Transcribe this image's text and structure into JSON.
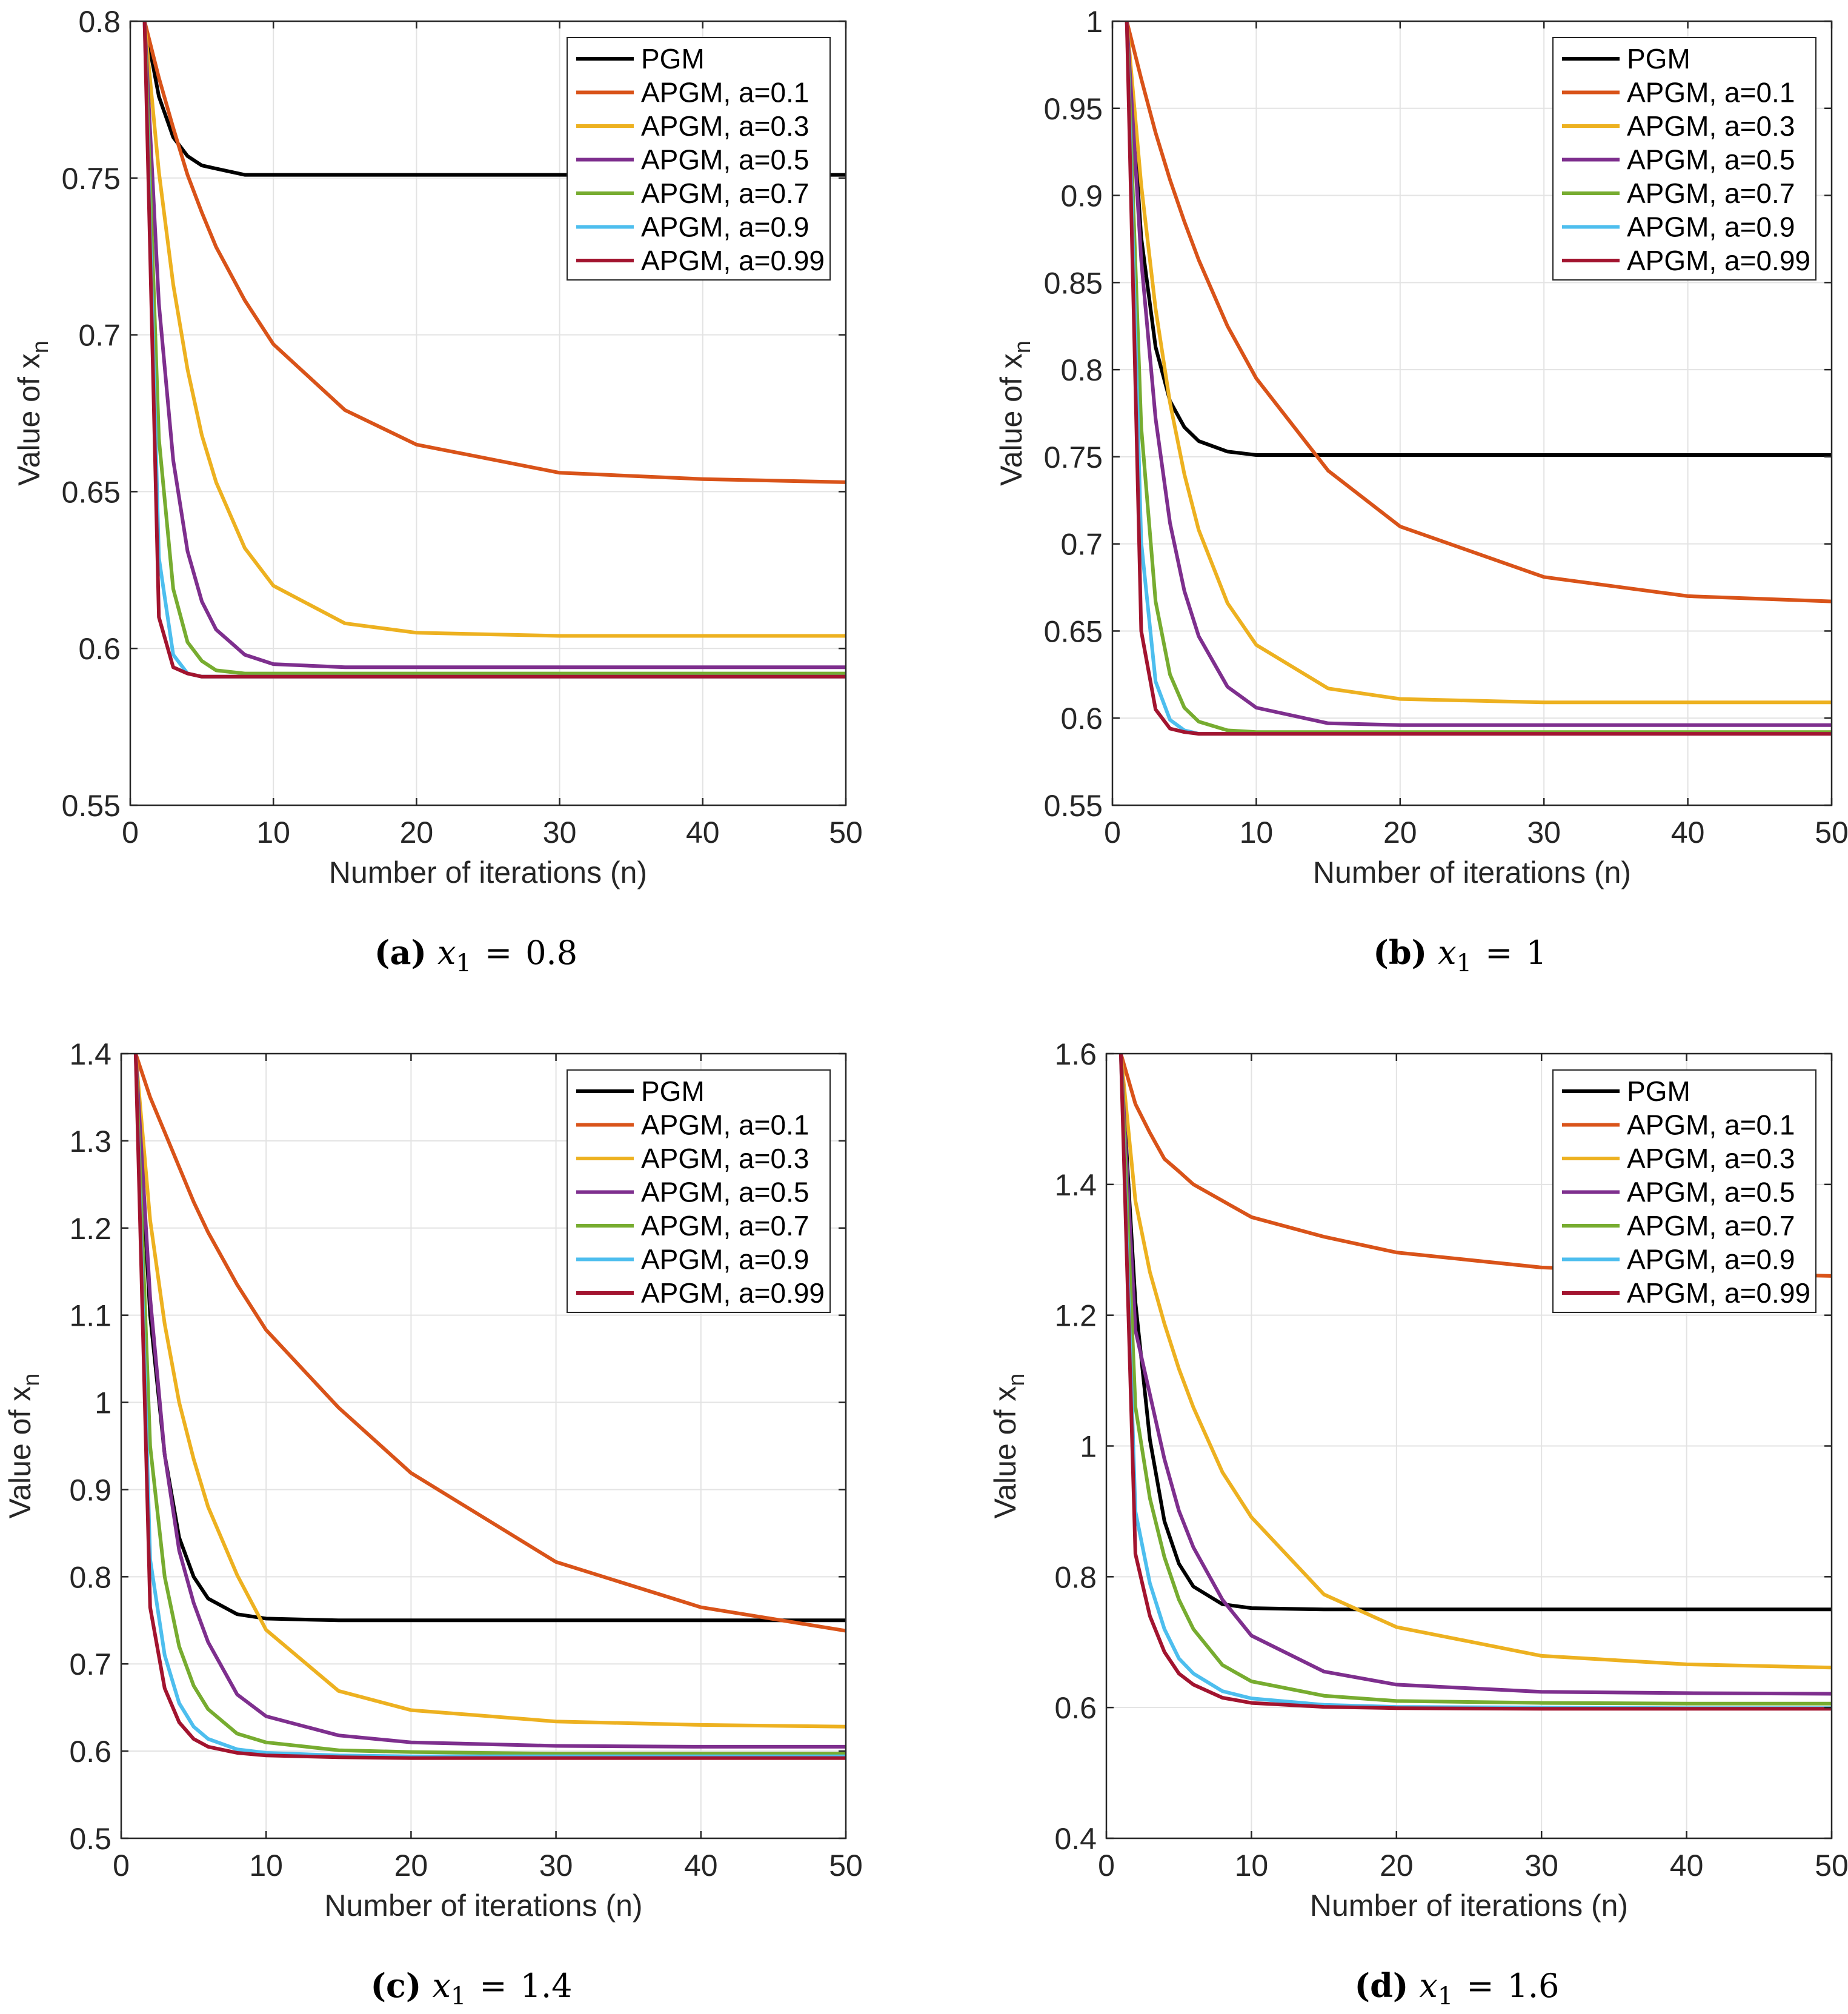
{
  "chart_data": [
    {
      "type": "line",
      "caption": {
        "label": "(a)",
        "var": "x",
        "sub": "1",
        "eq": "=",
        "value": "0.8"
      },
      "xlabel": "Number of iterations (n)",
      "ylabel": "Value of x",
      "ylabel_sub": "n",
      "xlim": [
        0,
        50
      ],
      "ylim": [
        0.55,
        0.8
      ],
      "xticks": [
        "0",
        "10",
        "20",
        "30",
        "40",
        "50"
      ],
      "xtick_values": [
        0,
        10,
        20,
        30,
        40,
        50
      ],
      "yticks": [
        "0.55",
        "0.6",
        "0.65",
        "0.7",
        "0.75",
        "0.8"
      ],
      "ytick_values": [
        0.55,
        0.6,
        0.65,
        0.7,
        0.75,
        0.8
      ],
      "grid": true,
      "legend_position": "top-right",
      "x": [
        1,
        2,
        3,
        4,
        5,
        6,
        8,
        10,
        15,
        20,
        30,
        40,
        50
      ],
      "series": [
        {
          "name": "PGM",
          "color": "#000000",
          "values": [
            0.8,
            0.776,
            0.763,
            0.757,
            0.754,
            0.753,
            0.751,
            0.751,
            0.751,
            0.751,
            0.751,
            0.751,
            0.751
          ]
        },
        {
          "name": "APGM, a=0.1",
          "color": "#D95319",
          "values": [
            0.8,
            0.782,
            0.766,
            0.751,
            0.739,
            0.728,
            0.711,
            0.697,
            0.676,
            0.665,
            0.656,
            0.654,
            0.653
          ]
        },
        {
          "name": "APGM, a=0.3",
          "color": "#EDB120",
          "values": [
            0.8,
            0.752,
            0.716,
            0.689,
            0.668,
            0.653,
            0.632,
            0.62,
            0.608,
            0.605,
            0.604,
            0.604,
            0.604
          ]
        },
        {
          "name": "APGM, a=0.5",
          "color": "#7E2F8E",
          "values": [
            0.8,
            0.71,
            0.66,
            0.631,
            0.615,
            0.606,
            0.598,
            0.595,
            0.594,
            0.594,
            0.594,
            0.594,
            0.594
          ]
        },
        {
          "name": "APGM, a=0.7",
          "color": "#77AC30",
          "values": [
            0.8,
            0.667,
            0.619,
            0.602,
            0.596,
            0.593,
            0.592,
            0.592,
            0.592,
            0.592,
            0.592,
            0.592,
            0.592
          ]
        },
        {
          "name": "APGM, a=0.9",
          "color": "#4DBEEE",
          "values": [
            0.8,
            0.629,
            0.598,
            0.592,
            0.591,
            0.591,
            0.591,
            0.591,
            0.591,
            0.591,
            0.591,
            0.591,
            0.591
          ]
        },
        {
          "name": "APGM, a=0.99",
          "color": "#A2142F",
          "values": [
            0.8,
            0.61,
            0.594,
            0.592,
            0.591,
            0.591,
            0.591,
            0.591,
            0.591,
            0.591,
            0.591,
            0.591,
            0.591
          ]
        }
      ]
    },
    {
      "type": "line",
      "caption": {
        "label": "(b)",
        "var": "x",
        "sub": "1",
        "eq": "=",
        "value": "1"
      },
      "xlabel": "Number of iterations (n)",
      "ylabel": "Value of x",
      "ylabel_sub": "n",
      "xlim": [
        0,
        50
      ],
      "ylim": [
        0.55,
        1
      ],
      "xticks": [
        "0",
        "10",
        "20",
        "30",
        "40",
        "50"
      ],
      "xtick_values": [
        0,
        10,
        20,
        30,
        40,
        50
      ],
      "yticks": [
        "0.55",
        "0.6",
        "0.65",
        "0.7",
        "0.75",
        "0.8",
        "0.85",
        "0.9",
        "0.95",
        "1"
      ],
      "ytick_values": [
        0.55,
        0.6,
        0.65,
        0.7,
        0.75,
        0.8,
        0.85,
        0.9,
        0.95,
        1
      ],
      "grid": true,
      "legend_position": "top-right",
      "x": [
        1,
        2,
        3,
        4,
        5,
        6,
        8,
        10,
        15,
        20,
        30,
        40,
        50
      ],
      "series": [
        {
          "name": "PGM",
          "color": "#000000",
          "values": [
            1,
            0.876,
            0.813,
            0.782,
            0.767,
            0.759,
            0.753,
            0.751,
            0.751,
            0.751,
            0.751,
            0.751,
            0.751
          ]
        },
        {
          "name": "APGM, a=0.1",
          "color": "#D95319",
          "values": [
            1,
            0.967,
            0.936,
            0.909,
            0.885,
            0.863,
            0.825,
            0.795,
            0.742,
            0.71,
            0.681,
            0.67,
            0.667
          ]
        },
        {
          "name": "APGM, a=0.3",
          "color": "#EDB120",
          "values": [
            1,
            0.906,
            0.835,
            0.781,
            0.74,
            0.708,
            0.666,
            0.642,
            0.617,
            0.611,
            0.609,
            0.609,
            0.609
          ]
        },
        {
          "name": "APGM, a=0.5",
          "color": "#7E2F8E",
          "values": [
            1,
            0.863,
            0.772,
            0.712,
            0.673,
            0.647,
            0.618,
            0.606,
            0.597,
            0.596,
            0.596,
            0.596,
            0.596
          ]
        },
        {
          "name": "APGM, a=0.7",
          "color": "#77AC30",
          "values": [
            1,
            0.767,
            0.667,
            0.625,
            0.606,
            0.598,
            0.593,
            0.592,
            0.592,
            0.592,
            0.592,
            0.592,
            0.592
          ]
        },
        {
          "name": "APGM, a=0.9",
          "color": "#4DBEEE",
          "values": [
            1,
            0.701,
            0.621,
            0.599,
            0.593,
            0.591,
            0.591,
            0.591,
            0.591,
            0.591,
            0.591,
            0.591,
            0.591
          ]
        },
        {
          "name": "APGM, a=0.99",
          "color": "#A2142F",
          "values": [
            1,
            0.65,
            0.605,
            0.594,
            0.592,
            0.591,
            0.591,
            0.591,
            0.591,
            0.591,
            0.591,
            0.591,
            0.591
          ]
        }
      ]
    },
    {
      "type": "line",
      "caption": {
        "label": "(c)",
        "var": "x",
        "sub": "1",
        "eq": "=",
        "value": "1.4"
      },
      "xlabel": "Number of iterations (n)",
      "ylabel": "Value of x",
      "ylabel_sub": "n",
      "xlim": [
        0,
        50
      ],
      "ylim": [
        0.5,
        1.4
      ],
      "xticks": [
        "0",
        "10",
        "20",
        "30",
        "40",
        "50"
      ],
      "xtick_values": [
        0,
        10,
        20,
        30,
        40,
        50
      ],
      "yticks": [
        "0.5",
        "0.6",
        "0.7",
        "0.8",
        "0.9",
        "1",
        "1.1",
        "1.2",
        "1.3",
        "1.4"
      ],
      "ytick_values": [
        0.5,
        0.6,
        0.7,
        0.8,
        0.9,
        1,
        1.1,
        1.2,
        1.3,
        1.4
      ],
      "grid": true,
      "legend_position": "top-right",
      "x": [
        1,
        2,
        3,
        4,
        5,
        6,
        8,
        10,
        15,
        20,
        30,
        40,
        50
      ],
      "series": [
        {
          "name": "PGM",
          "color": "#000000",
          "values": [
            1.4,
            1.1,
            0.94,
            0.845,
            0.8,
            0.775,
            0.757,
            0.752,
            0.75,
            0.75,
            0.75,
            0.75,
            0.75
          ]
        },
        {
          "name": "APGM, a=0.1",
          "color": "#D95319",
          "values": [
            1.4,
            1.35,
            1.31,
            1.27,
            1.23,
            1.195,
            1.135,
            1.083,
            0.994,
            0.919,
            0.817,
            0.765,
            0.738
          ]
        },
        {
          "name": "APGM, a=0.3",
          "color": "#EDB120",
          "values": [
            1.4,
            1.209,
            1.09,
            1.0,
            0.935,
            0.88,
            0.802,
            0.739,
            0.669,
            0.647,
            0.634,
            0.63,
            0.628
          ]
        },
        {
          "name": "APGM, a=0.5",
          "color": "#7E2F8E",
          "values": [
            1.4,
            1.12,
            0.94,
            0.83,
            0.77,
            0.725,
            0.665,
            0.64,
            0.618,
            0.61,
            0.606,
            0.605,
            0.605
          ]
        },
        {
          "name": "APGM, a=0.7",
          "color": "#77AC30",
          "values": [
            1.4,
            0.95,
            0.8,
            0.72,
            0.675,
            0.648,
            0.62,
            0.61,
            0.601,
            0.599,
            0.597,
            0.597,
            0.597
          ]
        },
        {
          "name": "APGM, a=0.9",
          "color": "#4DBEEE",
          "values": [
            1.4,
            0.82,
            0.71,
            0.655,
            0.628,
            0.614,
            0.602,
            0.598,
            0.595,
            0.594,
            0.594,
            0.594,
            0.594
          ]
        },
        {
          "name": "APGM, a=0.99",
          "color": "#A2142F",
          "values": [
            1.4,
            0.765,
            0.672,
            0.633,
            0.614,
            0.605,
            0.598,
            0.595,
            0.593,
            0.592,
            0.592,
            0.592,
            0.592
          ]
        }
      ]
    },
    {
      "type": "line",
      "caption": {
        "label": "(d)",
        "var": "x",
        "sub": "1",
        "eq": "=",
        "value": "1.6"
      },
      "xlabel": "Number of iterations (n)",
      "ylabel": "Value of x",
      "ylabel_sub": "n",
      "xlim": [
        0,
        50
      ],
      "ylim": [
        0.4,
        1.6
      ],
      "xticks": [
        "0",
        "10",
        "20",
        "30",
        "40",
        "50"
      ],
      "xtick_values": [
        0,
        10,
        20,
        30,
        40,
        50
      ],
      "yticks": [
        "0.4",
        "0.6",
        "0.8",
        "1",
        "1.2",
        "1.4",
        "1.6"
      ],
      "ytick_values": [
        0.4,
        0.6,
        0.8,
        1,
        1.2,
        1.4,
        1.6
      ],
      "grid": true,
      "legend_position": "top-right",
      "x": [
        1,
        2,
        3,
        4,
        5,
        6,
        8,
        10,
        15,
        20,
        30,
        40,
        50
      ],
      "series": [
        {
          "name": "PGM",
          "color": "#000000",
          "values": [
            1.6,
            1.22,
            1.01,
            0.885,
            0.82,
            0.785,
            0.758,
            0.752,
            0.75,
            0.75,
            0.75,
            0.75,
            0.75
          ]
        },
        {
          "name": "APGM, a=0.1",
          "color": "#D95319",
          "values": [
            1.6,
            1.523,
            1.479,
            1.439,
            1.42,
            1.4,
            1.375,
            1.35,
            1.32,
            1.296,
            1.273,
            1.265,
            1.26
          ]
        },
        {
          "name": "APGM, a=0.3",
          "color": "#EDB120",
          "values": [
            1.6,
            1.375,
            1.266,
            1.187,
            1.118,
            1.059,
            0.96,
            0.891,
            0.773,
            0.723,
            0.679,
            0.666,
            0.661
          ]
        },
        {
          "name": "APGM, a=0.5",
          "color": "#7E2F8E",
          "values": [
            1.6,
            1.177,
            1.079,
            0.98,
            0.901,
            0.845,
            0.765,
            0.71,
            0.655,
            0.635,
            0.624,
            0.622,
            0.621
          ]
        },
        {
          "name": "APGM, a=0.7",
          "color": "#77AC30",
          "values": [
            1.6,
            1.06,
            0.92,
            0.83,
            0.765,
            0.72,
            0.665,
            0.64,
            0.618,
            0.61,
            0.607,
            0.606,
            0.606
          ]
        },
        {
          "name": "APGM, a=0.9",
          "color": "#4DBEEE",
          "values": [
            1.6,
            0.9,
            0.79,
            0.72,
            0.675,
            0.652,
            0.625,
            0.614,
            0.604,
            0.601,
            0.6,
            0.599,
            0.599
          ]
        },
        {
          "name": "APGM, a=0.99",
          "color": "#A2142F",
          "values": [
            1.6,
            0.835,
            0.74,
            0.685,
            0.652,
            0.635,
            0.615,
            0.607,
            0.601,
            0.599,
            0.598,
            0.598,
            0.598
          ]
        }
      ]
    }
  ]
}
